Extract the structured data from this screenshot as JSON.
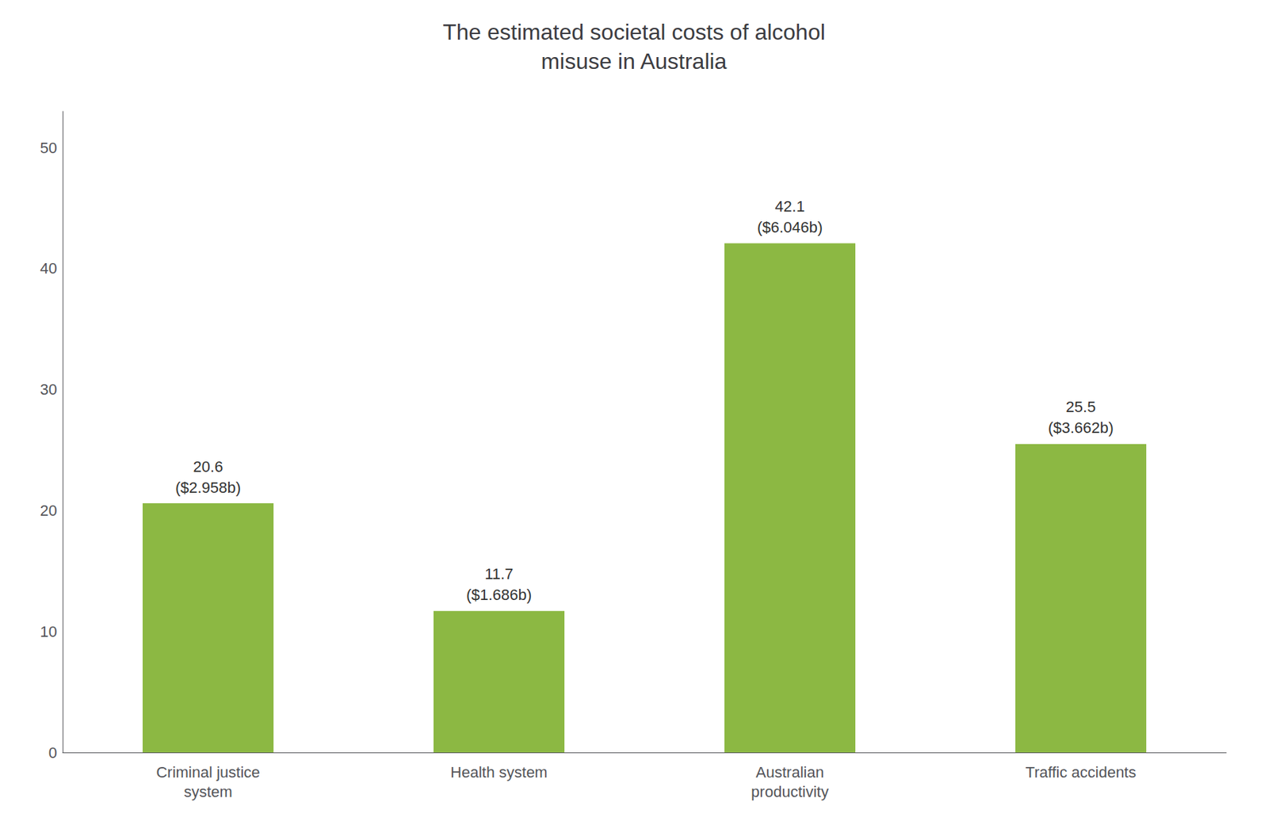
{
  "chart_data": {
    "type": "bar",
    "title": "The estimated societal costs of alcohol\nmisuse in Australia",
    "categories": [
      "Criminal justice\nsystem",
      "Health system",
      "Australian\nproductivity",
      "Traffic accidents"
    ],
    "values": [
      20.6,
      11.7,
      42.1,
      25.5
    ],
    "value_labels": [
      "20.6\n($2.958b)",
      "11.7\n($1.686b)",
      "42.1\n($6.046b)",
      "25.5\n($3.662b)"
    ],
    "data_labels": true,
    "color": "#8cb843",
    "ylim": [
      0,
      53
    ],
    "yticks": [
      0,
      10,
      20,
      30,
      40,
      50
    ],
    "grid": false
  }
}
